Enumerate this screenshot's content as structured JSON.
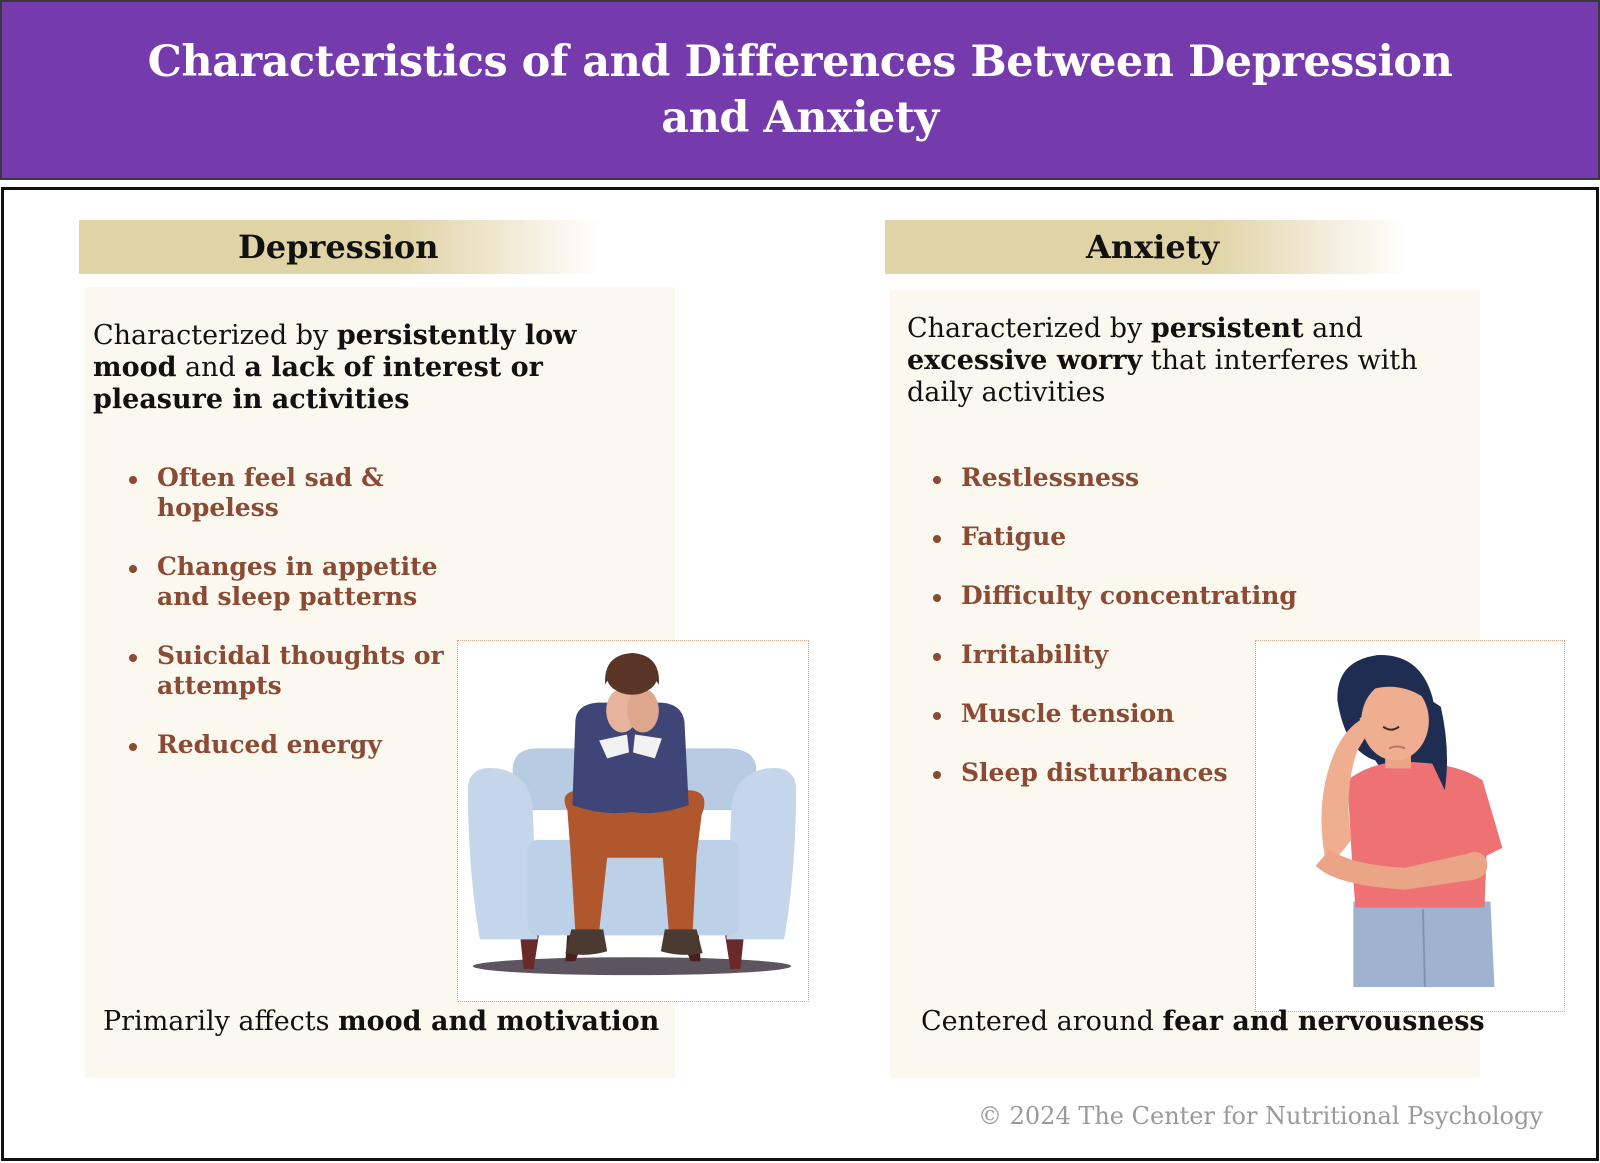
{
  "title": "Characteristics of and Differences Between Depression and Anxiety",
  "depression": {
    "heading": "Depression",
    "intro": {
      "t1": "Characterized by ",
      "b1": "persistently low mood",
      "t2": " and ",
      "b2": "a lack of interest or pleasure in activities"
    },
    "bullets": [
      "Often feel sad & hopeless",
      "Changes in appetite and sleep patterns",
      "Suicidal thoughts or attempts",
      "Reduced energy"
    ],
    "footer": {
      "t1": "Primarily affects ",
      "b1": "mood and motivation"
    }
  },
  "anxiety": {
    "heading": "Anxiety",
    "intro": {
      "t1": "Characterized by ",
      "b1": "persistent",
      "t2": " and ",
      "b2": "excessive worry",
      "t3": " that interferes with daily activities"
    },
    "bullets": [
      "Restlessness",
      "Fatigue",
      "Difficulty concentrating",
      "Irritability",
      "Muscle tension",
      "Sleep disturbances"
    ],
    "footer": {
      "t1": "Centered around ",
      "b1": "fear and nervousness"
    }
  },
  "copyright": "© 2024 The Center for Nutritional Psychology",
  "colors": {
    "header_bg": "#753aab",
    "column_header_bg": "#e0d3a6",
    "card_bg": "#fbf8ef",
    "bullet_text": "#8a4a34"
  }
}
